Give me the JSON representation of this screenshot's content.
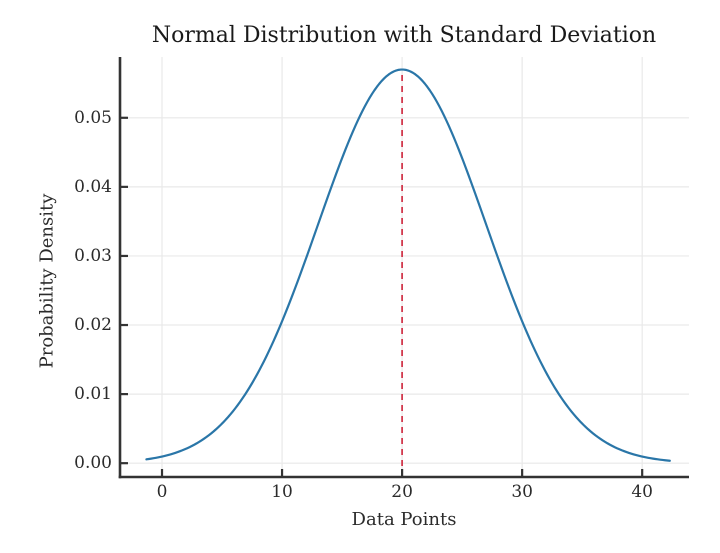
{
  "chart_data": {
    "type": "line",
    "title": "Normal Distribution with Standard Deviation",
    "xlabel": "Data Points",
    "ylabel": "Probability Density",
    "x_ticks": [
      "0",
      "10",
      "20",
      "30",
      "40"
    ],
    "x_tick_values": [
      0,
      10,
      20,
      30,
      40
    ],
    "y_ticks": [
      "0.00",
      "0.01",
      "0.02",
      "0.03",
      "0.04",
      "0.05"
    ],
    "y_tick_values": [
      0,
      0.01,
      0.02,
      0.03,
      0.04,
      0.05
    ],
    "xlim": [
      -3.5,
      43.9
    ],
    "ylim": [
      -0.002,
      0.0588
    ],
    "grid": true,
    "legend": "none",
    "series": [
      {
        "name": "normal_pdf_curve",
        "color": "#2a76a8",
        "line_width": 2.2,
        "distribution": {
          "mean": 20,
          "std": 7,
          "peak_density": 0.05699
        },
        "x_start": -1.3,
        "x_end": 42.3,
        "points": [
          [
            -1.3,
            0.00056
          ],
          [
            0,
            0.00096
          ],
          [
            2,
            0.00209
          ],
          [
            4,
            0.00418
          ],
          [
            6,
            0.00771
          ],
          [
            8,
            0.01311
          ],
          [
            10,
            0.02054
          ],
          [
            12,
            0.02966
          ],
          [
            14,
            0.03947
          ],
          [
            16,
            0.0484
          ],
          [
            18,
            0.05471
          ],
          [
            20,
            0.05699
          ],
          [
            22,
            0.05471
          ],
          [
            24,
            0.0484
          ],
          [
            26,
            0.03947
          ],
          [
            28,
            0.02966
          ],
          [
            30,
            0.02054
          ],
          [
            32,
            0.01311
          ],
          [
            34,
            0.00771
          ],
          [
            36,
            0.00418
          ],
          [
            38,
            0.00209
          ],
          [
            40,
            0.00096
          ],
          [
            42.3,
            0.00037
          ]
        ]
      }
    ],
    "annotations": [
      {
        "name": "mean_line",
        "type": "vline",
        "x": 20,
        "y_bottom_axes": true,
        "y_top": 0.05699,
        "style": "dashed",
        "color": "#d23a4e",
        "line_width": 1.8
      }
    ]
  },
  "style": {
    "background": "#ffffff",
    "text_color": "#2b2b2b",
    "title_color": "#1a1a1a",
    "grid_color": "#e9e9e9",
    "spine_color": "#333333",
    "curve_color": "#2a76a8",
    "mean_line_color": "#d23a4e"
  }
}
